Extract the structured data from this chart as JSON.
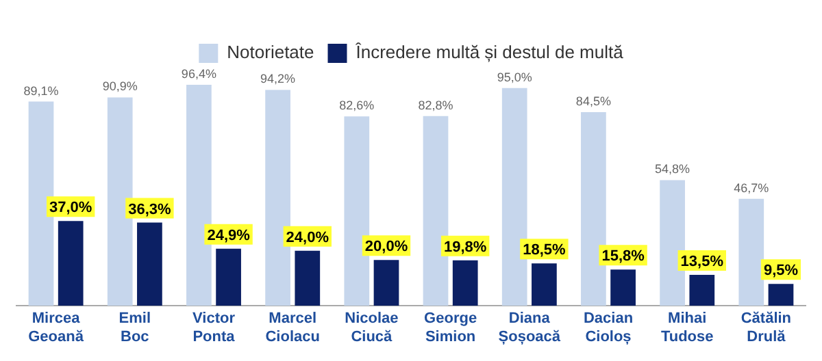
{
  "chart_data": {
    "type": "bar",
    "categories": [
      "Mircea Geoană",
      "Emil Boc",
      "Victor Ponta",
      "Marcel Ciolacu",
      "Nicolae Ciucă",
      "George Simion",
      "Diana Șoșoacă",
      "Dacian Cioloș",
      "Mihai Tudose",
      "Cătălin Drulă"
    ],
    "series": [
      {
        "name": "Notorietate",
        "color": "#c6d6ec",
        "values": [
          89.1,
          90.9,
          96.4,
          94.2,
          82.6,
          82.8,
          95.0,
          84.5,
          54.8,
          46.7
        ],
        "value_labels": [
          "89,1%",
          "90,9%",
          "96,4%",
          "94,2%",
          "82,6%",
          "82,8%",
          "95,0%",
          "84,5%",
          "54,8%",
          "46,7%"
        ]
      },
      {
        "name": "Încredere multă și destul de multă",
        "color": "#0c2064",
        "values": [
          37.0,
          36.3,
          24.9,
          24.0,
          20.0,
          19.8,
          18.5,
          15.8,
          13.5,
          9.5
        ],
        "value_labels": [
          "37,0%",
          "36,3%",
          "24,9%",
          "24,0%",
          "20,0%",
          "19,8%",
          "18,5%",
          "15,8%",
          "13,5%",
          "9,5%"
        ]
      }
    ],
    "legend": "top",
    "grid": false,
    "tick_labels": "x"
  }
}
